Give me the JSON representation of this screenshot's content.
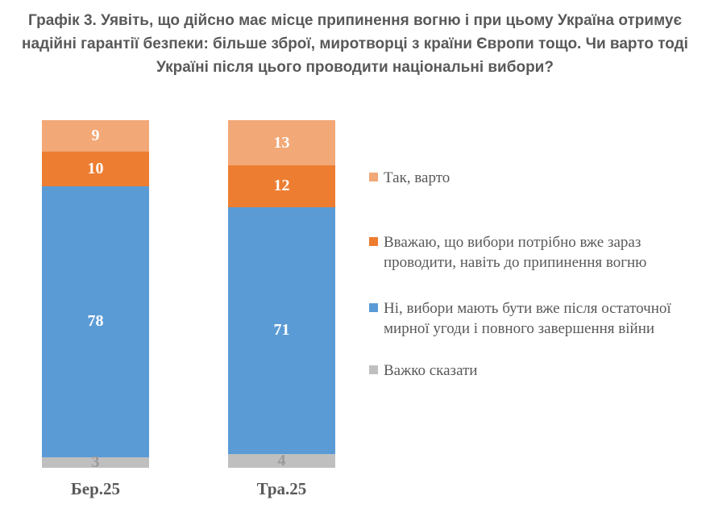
{
  "page": {
    "background": "#FFFFFF",
    "text_color": "#595959"
  },
  "chart_data": {
    "type": "bar",
    "subtype": "stacked-column",
    "title": "Графік 3. Уявіть, що дійсно має місце припинення вогню і при цьому Україна отримує надійні гарантії безпеки: більше зброї, миротворці з країни Європи тощо. Чи варто тоді Україні після цього проводити національні вибори?",
    "title_color": "#595959",
    "categories": [
      "Бер.25",
      "Тра.25"
    ],
    "series": [
      {
        "name": "Так, варто",
        "color": "#F2A877",
        "label_color": "#FFFFFF",
        "values": [
          9,
          13
        ]
      },
      {
        "name": "Вважаю, що вибори потрібно вже зараз проводити, навіть до припинення вогню",
        "color": "#ED7D31",
        "label_color": "#FFFFFF",
        "values": [
          10,
          12
        ]
      },
      {
        "name": "Ні, вибори мають бути вже після остаточної мирної угоди і повного завершення війни",
        "color": "#5B9BD5",
        "label_color": "#FFFFFF",
        "values": [
          78,
          71
        ]
      },
      {
        "name": "Важко сказати",
        "color": "#BFBFBF",
        "label_color": "#9A9A9A",
        "values": [
          3,
          4
        ]
      }
    ],
    "ylim": [
      0,
      100
    ],
    "units": "percent",
    "grid": false,
    "legend_position": "right",
    "stack_order_top_to_bottom": true
  }
}
